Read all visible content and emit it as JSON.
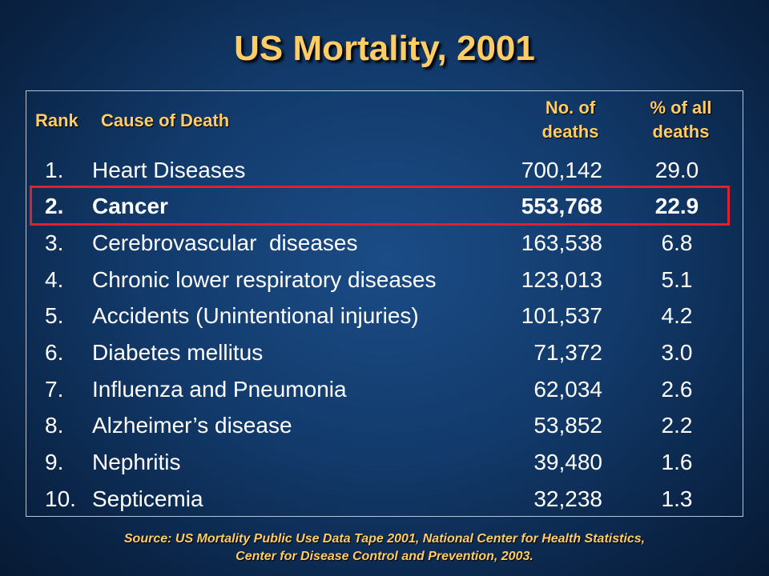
{
  "title": "US Mortality, 2001",
  "headers": {
    "rank": "Rank",
    "cause": "Cause of Death",
    "deaths_line1": "No. of",
    "deaths_line2": "deaths",
    "pct_line1": "% of all",
    "pct_line2": "deaths"
  },
  "rows": [
    {
      "rank": "1.",
      "cause": "Heart Diseases",
      "deaths": "700,142",
      "pct": "29.0"
    },
    {
      "rank": "2.",
      "cause": "Cancer",
      "deaths": "553,768",
      "pct": "22.9"
    },
    {
      "rank": "3.",
      "cause": "Cerebrovascular  diseases",
      "deaths": "163,538",
      "pct": "6.8"
    },
    {
      "rank": "4.",
      "cause": "Chronic lower respiratory diseases",
      "deaths": "123,013",
      "pct": "5.1"
    },
    {
      "rank": "5.",
      "cause": "Accidents (Unintentional injuries)",
      "deaths": "101,537",
      "pct": "4.2"
    },
    {
      "rank": "6.",
      "cause": "Diabetes mellitus",
      "deaths": "71,372",
      "pct": "3.0"
    },
    {
      "rank": "7.",
      "cause": "Influenza and Pneumonia",
      "deaths": "62,034",
      "pct": "2.6"
    },
    {
      "rank": "8.",
      "cause": "Alzheimer’s disease",
      "deaths": "53,852",
      "pct": "2.2"
    },
    {
      "rank": "9.",
      "cause": "Nephritis",
      "deaths": "39,480",
      "pct": "1.6"
    },
    {
      "rank": "10.",
      "cause": "Septicemia",
      "deaths": "32,238",
      "pct": "1.3"
    }
  ],
  "source": {
    "line1": "Source: US Mortality Public Use Data Tape 2001, National Center for Health Statistics,",
    "line2": "Center for Disease Control and Prevention, 2003."
  },
  "colors": {
    "title": "#ffcc66",
    "text": "#ffffff",
    "highlight_border": "#e0202a",
    "background": "#123a6b"
  }
}
